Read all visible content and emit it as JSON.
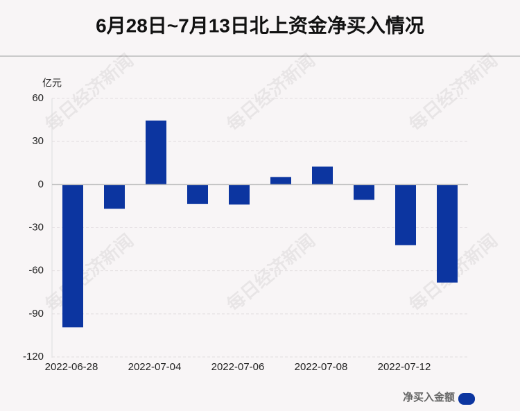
{
  "chart_data": {
    "type": "bar",
    "title": "6月28日~7月13日北上资金净买入情况",
    "y_axis_label": "亿元",
    "watermark": "每日经济新闻",
    "categories": [
      "2022-06-28",
      null,
      "2022-07-04",
      null,
      "2022-07-06",
      null,
      "2022-07-08",
      null,
      "2022-07-12",
      null
    ],
    "series": [
      {
        "name": "净买入金额",
        "color": "#0c35a0",
        "values": [
          -99.4,
          -16.8,
          44.6,
          -13.4,
          -13.9,
          5.3,
          12.5,
          -10.6,
          -42.2,
          -68.2
        ]
      }
    ],
    "ylim": [
      -120,
      60
    ],
    "yticks": [
      -120,
      -90,
      -60,
      -30,
      0,
      30,
      60
    ],
    "grid": true
  }
}
